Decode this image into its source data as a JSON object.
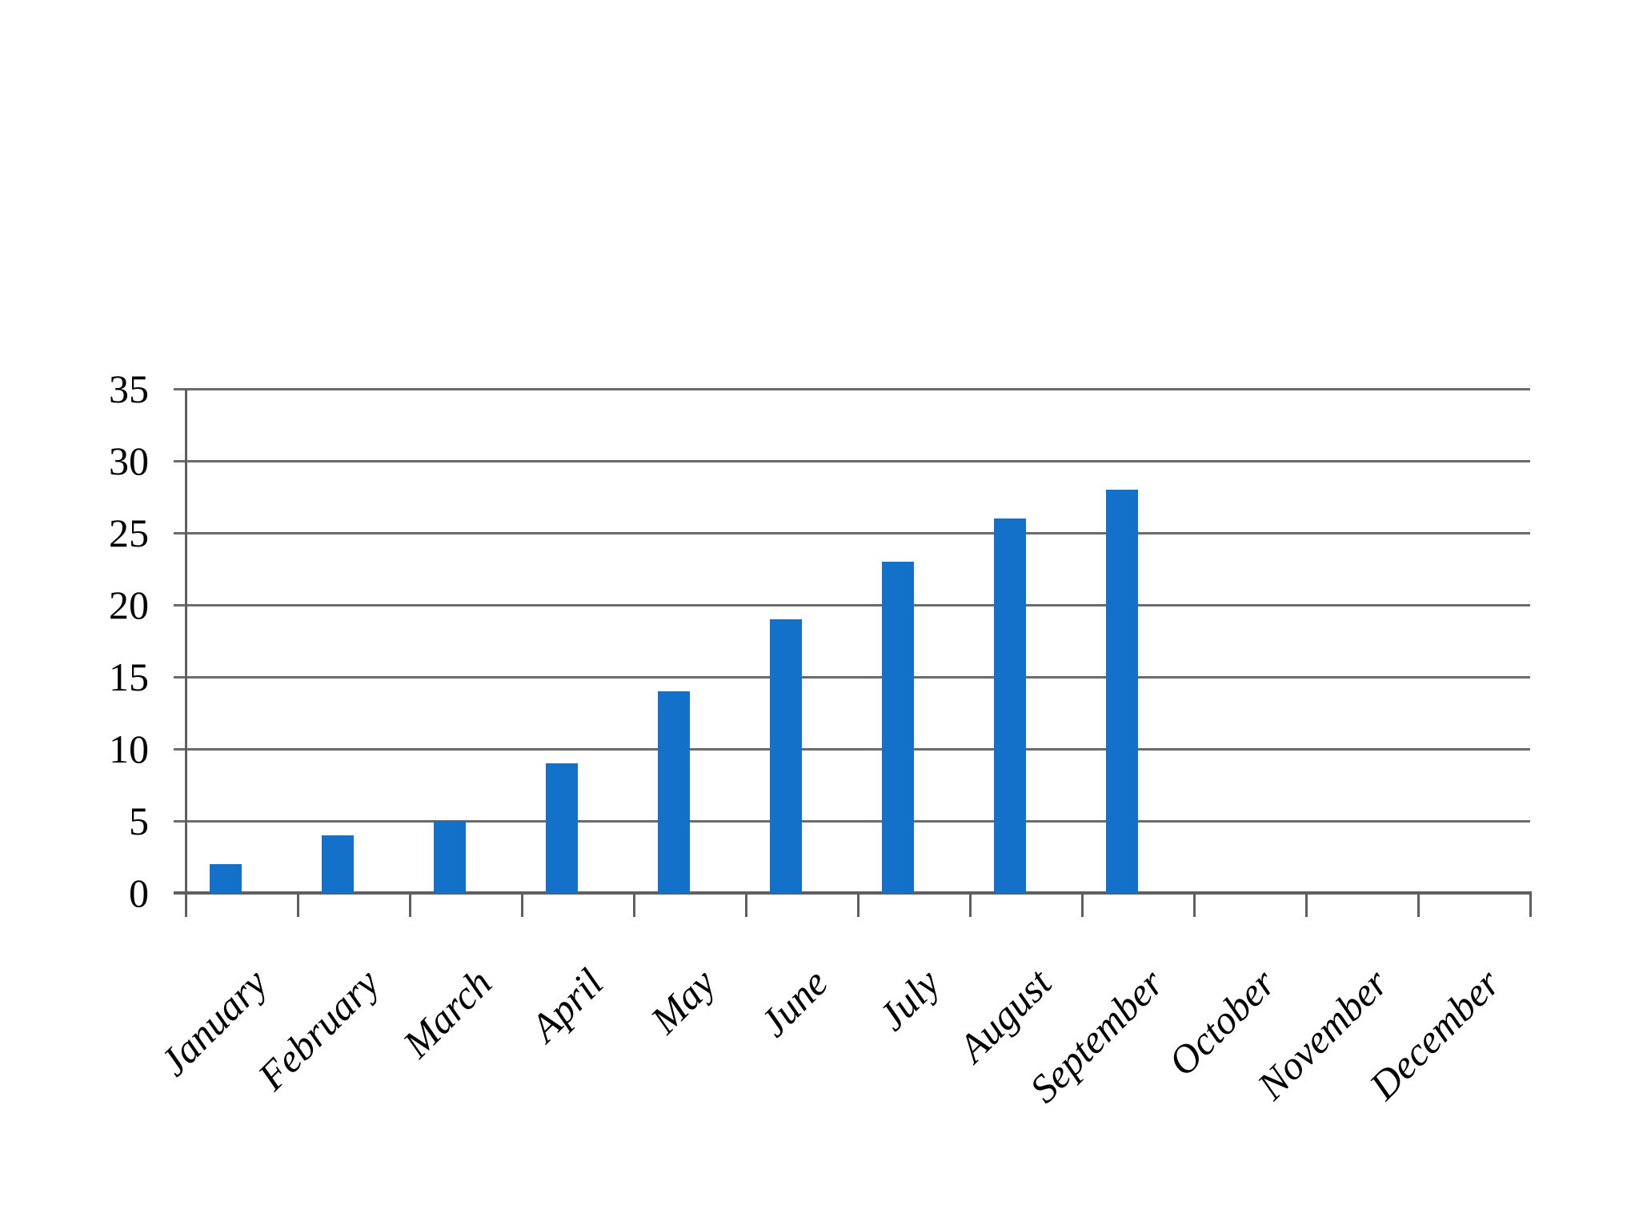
{
  "chart_data": {
    "type": "bar",
    "title": "",
    "categories": [
      "January",
      "February",
      "March",
      "April",
      "May",
      "June",
      "July",
      "August",
      "September",
      "October",
      "November",
      "December"
    ],
    "values": [
      2,
      4,
      5,
      9,
      14,
      19,
      23,
      26,
      28,
      0,
      0,
      0
    ],
    "xlabel": "",
    "ylabel": "",
    "ylim": [
      0,
      35
    ],
    "ytick_step": 5,
    "ytick_labels": [
      "0",
      "5",
      "10",
      "15",
      "20",
      "25",
      "30",
      "35"
    ],
    "grid": "horizontal-only",
    "legend": "none",
    "colors": {
      "bar": "#1471c9",
      "gridline": "#6b6b6b",
      "axis": "#5f5f5f",
      "text": "#000000",
      "background": "#ffffff"
    }
  }
}
